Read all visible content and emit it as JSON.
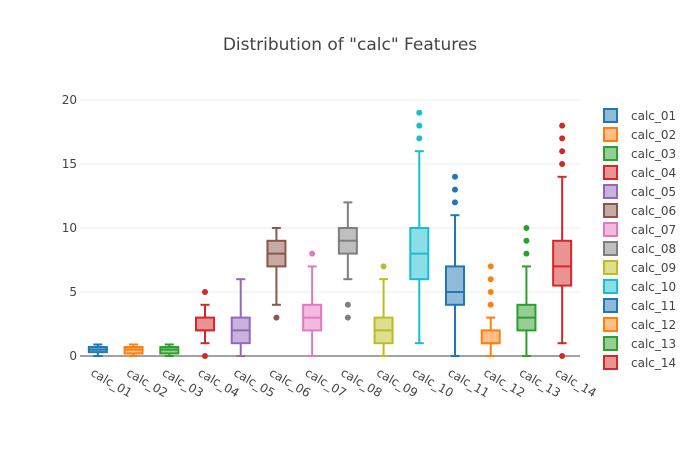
{
  "chart_data": {
    "type": "box",
    "title": "Distribution of \"calc\" Features",
    "xlabel": "",
    "ylabel": "",
    "ylim": [
      0,
      21
    ],
    "yticks": [
      0,
      5,
      10,
      15,
      20
    ],
    "grid": true,
    "legend_position": "right",
    "series": [
      {
        "name": "calc_01",
        "color": "#1f77b4",
        "min": 0.0,
        "q1": 0.3,
        "median": 0.5,
        "q3": 0.7,
        "max": 0.9,
        "outliers": []
      },
      {
        "name": "calc_02",
        "color": "#ff7f0e",
        "min": 0.0,
        "q1": 0.2,
        "median": 0.5,
        "q3": 0.7,
        "max": 0.9,
        "outliers": []
      },
      {
        "name": "calc_03",
        "color": "#2ca02c",
        "min": 0.0,
        "q1": 0.2,
        "median": 0.5,
        "q3": 0.7,
        "max": 0.9,
        "outliers": []
      },
      {
        "name": "calc_04",
        "color": "#d62728",
        "min": 1,
        "q1": 2,
        "median": 2,
        "q3": 3,
        "max": 4,
        "outliers": [
          0,
          5
        ]
      },
      {
        "name": "calc_05",
        "color": "#9467bd",
        "min": 0,
        "q1": 1,
        "median": 2,
        "q3": 3,
        "max": 6,
        "outliers": []
      },
      {
        "name": "calc_06",
        "color": "#8c564b",
        "min": 4,
        "q1": 7,
        "median": 8,
        "q3": 9,
        "max": 10,
        "outliers": [
          3
        ]
      },
      {
        "name": "calc_07",
        "color": "#e377c2",
        "min": 0,
        "q1": 2,
        "median": 3,
        "q3": 4,
        "max": 7,
        "outliers": [
          8
        ]
      },
      {
        "name": "calc_08",
        "color": "#7f7f7f",
        "min": 6,
        "q1": 8,
        "median": 9,
        "q3": 10,
        "max": 12,
        "outliers": [
          3,
          4
        ]
      },
      {
        "name": "calc_09",
        "color": "#bcbd22",
        "min": 0,
        "q1": 1,
        "median": 2,
        "q3": 3,
        "max": 6,
        "outliers": [
          7
        ]
      },
      {
        "name": "calc_10",
        "color": "#17becf",
        "min": 1,
        "q1": 6,
        "median": 8,
        "q3": 10,
        "max": 16,
        "outliers": [
          17,
          18,
          19
        ]
      },
      {
        "name": "calc_11",
        "color": "#1f77b4",
        "min": 0,
        "q1": 4,
        "median": 5,
        "q3": 7,
        "max": 11,
        "outliers": [
          12,
          13,
          14
        ]
      },
      {
        "name": "calc_12",
        "color": "#ff7f0e",
        "min": 0,
        "q1": 1,
        "median": 1,
        "q3": 2,
        "max": 3,
        "outliers": [
          4,
          5,
          6,
          7
        ]
      },
      {
        "name": "calc_13",
        "color": "#2ca02c",
        "min": 0,
        "q1": 2,
        "median": 3,
        "q3": 4,
        "max": 7,
        "outliers": [
          8,
          9,
          10
        ]
      },
      {
        "name": "calc_14",
        "color": "#d62728",
        "min": 1,
        "q1": 5.5,
        "median": 7,
        "q3": 9,
        "max": 14,
        "outliers": [
          0,
          15,
          16,
          17,
          18
        ]
      }
    ]
  }
}
